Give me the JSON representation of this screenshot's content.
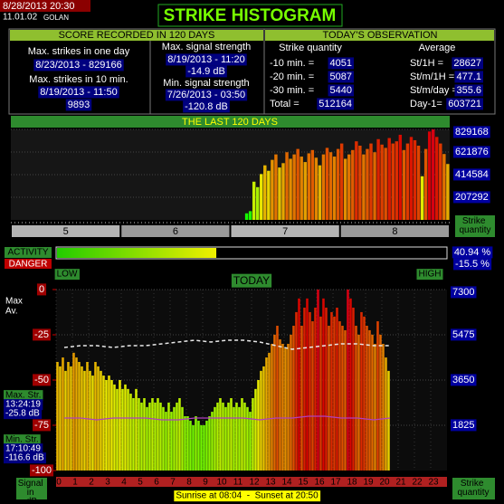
{
  "header": {
    "datetime": "8/28/2013 20:30",
    "version": "11.01.02",
    "station": "GOLAN",
    "title": "STRIKE HISTOGRAM"
  },
  "score": {
    "title": "SCORE RECORDED IN 120 DAYS",
    "max_day_label": "Max. strikes in one day",
    "max_day_value": "8/23/2013 - 829166",
    "max_10min_label": "Max. strikes in 10 min.",
    "max_10min_date": "8/19/2013 - 11:50",
    "max_10min_value": "9893",
    "max_signal_label": "Max. signal strength",
    "max_signal_date": "8/19/2013 - 11:20",
    "max_signal_value": "-14.9 dB",
    "min_signal_label": "Min. signal strength",
    "min_signal_date": "7/26/2013 - 03:50",
    "min_signal_value": "-120.8 dB"
  },
  "observation": {
    "title": "TODAY'S OBSERVATION",
    "quantity_header": "Strike quantity",
    "average_header": "Average",
    "rows": [
      [
        "-10 min. =",
        "4051",
        "St/1H =",
        "28627"
      ],
      [
        "-20 min. =",
        "5087",
        "St/m/1H =",
        "477.1"
      ],
      [
        "-30 min. =",
        "5440",
        "St/m/day =",
        "355.6"
      ],
      [
        "Total =",
        "512164",
        "Day-1=",
        "603721"
      ]
    ]
  },
  "activity": {
    "label": "ACTIVITY",
    "value": 40.94,
    "value_label": "40.94 %",
    "lim": [
      0,
      100
    ],
    "danger_label": "DANGER",
    "danger_value_label": "-15.5 %",
    "low": "LOW",
    "high": "HIGH"
  },
  "chart_data": [
    {
      "type": "bar",
      "title": "THE LAST 120 DAYS",
      "y_label": "Strike quantity",
      "groups": [
        "5",
        "6",
        "7",
        "8"
      ],
      "ylim": [
        0,
        829168
      ],
      "yticks": [
        207292,
        414584,
        621876,
        829168
      ],
      "values": [
        null,
        null,
        null,
        null,
        null,
        null,
        null,
        null,
        null,
        null,
        null,
        null,
        null,
        null,
        null,
        null,
        null,
        null,
        null,
        null,
        null,
        null,
        null,
        null,
        null,
        null,
        null,
        null,
        null,
        null,
        null,
        null,
        null,
        null,
        null,
        null,
        null,
        null,
        null,
        null,
        null,
        null,
        null,
        null,
        null,
        null,
        null,
        null,
        null,
        null,
        null,
        null,
        null,
        null,
        null,
        null,
        null,
        null,
        null,
        null,
        null,
        null,
        null,
        null,
        60000,
        80000,
        350000,
        300000,
        420000,
        500000,
        450000,
        550000,
        600000,
        480000,
        520000,
        620000,
        560000,
        600000,
        650000,
        580000,
        530000,
        610000,
        640000,
        570000,
        500000,
        600000,
        660000,
        620000,
        580000,
        650000,
        700000,
        560000,
        600000,
        640000,
        720000,
        680000,
        600000,
        650000,
        700000,
        620000,
        740000,
        690000,
        660000,
        750000,
        700000,
        720000,
        780000,
        640000,
        700000,
        760000,
        730000,
        680000,
        400000,
        650000,
        810000,
        829166,
        760000,
        700000,
        603721,
        512164
      ]
    },
    {
      "type": "bar",
      "title": "TODAY",
      "y_label": "Strike quantity",
      "y2_label": "Signal in dB",
      "ylim": [
        0,
        7300
      ],
      "yticks": [
        1825,
        3650,
        5475,
        7300
      ],
      "y2lim": [
        -100,
        0
      ],
      "y2ticks": [
        -100,
        -75,
        -50,
        -25,
        0
      ],
      "xlim": [
        0,
        24
      ],
      "xticks": [
        0,
        1,
        2,
        3,
        4,
        5,
        6,
        7,
        8,
        9,
        10,
        11,
        12,
        13,
        14,
        15,
        16,
        17,
        18,
        19,
        20,
        21,
        22,
        23
      ],
      "values": [
        4380,
        4200,
        4560,
        4020,
        4380,
        4200,
        4750,
        4560,
        4380,
        4200,
        4020,
        4380,
        4020,
        3830,
        4380,
        4200,
        4020,
        3830,
        3650,
        3830,
        3650,
        3470,
        3290,
        3650,
        3290,
        3470,
        3290,
        3100,
        2920,
        3290,
        2920,
        2740,
        2920,
        2560,
        2740,
        2920,
        2740,
        2920,
        2740,
        2560,
        2370,
        2740,
        2370,
        2560,
        2740,
        2920,
        2560,
        2190,
        2190,
        2010,
        1830,
        2190,
        2010,
        1830,
        1830,
        2010,
        2190,
        2370,
        2560,
        2740,
        2920,
        2740,
        2560,
        2740,
        2920,
        2560,
        2740,
        2560,
        2920,
        2740,
        2560,
        2370,
        2920,
        3290,
        3650,
        4020,
        4200,
        4560,
        4750,
        5110,
        5480,
        5840,
        5290,
        5110,
        4930,
        5110,
        5480,
        5840,
        6390,
        6940,
        5840,
        6570,
        6940,
        6390,
        6020,
        6570,
        7300,
        6210,
        6940,
        6570,
        5840,
        6390,
        6210,
        6570,
        6020,
        5840,
        5660,
        7300,
        6940,
        6570,
        5840,
        5480,
        6390,
        6210,
        5840,
        5660,
        5480,
        5110,
        6020,
        5480,
        5110,
        4560,
        4020,
        null,
        null,
        null,
        null,
        null,
        null,
        null,
        null,
        null,
        null,
        null,
        null,
        null,
        null,
        null,
        null,
        null,
        null,
        null,
        null,
        null
      ],
      "series": [
        {
          "name": "Max",
          "color": "#e8e8e8",
          "axis": "y2",
          "x": [
            0.5,
            1.5,
            2.5,
            3.5,
            4.5,
            5.5,
            6.5,
            7.5,
            8.5,
            9.5,
            10.5,
            11.5,
            12.5,
            13.5,
            14.5,
            15.5,
            16.5,
            17.5,
            18.5,
            19.5,
            20.5
          ],
          "values": [
            -32,
            -31,
            -31,
            -32,
            -31,
            -31,
            -30,
            -29,
            -28,
            -29,
            -28,
            -28,
            -29,
            -31,
            -33,
            -32,
            -31,
            -30,
            -30,
            -31,
            -31
          ]
        },
        {
          "name": "Av.",
          "color": "#b040c0",
          "axis": "y2",
          "x": [
            0.5,
            1.5,
            2.5,
            3.5,
            4.5,
            5.5,
            6.5,
            7.5,
            8.5,
            9.5,
            10.5,
            11.5,
            12.5,
            13.5,
            14.5,
            15.5,
            16.5,
            17.5,
            18.5,
            19.5,
            20.5
          ],
          "values": [
            -71,
            -71,
            -72,
            -71,
            -71,
            -71,
            -72,
            -72,
            -71,
            -71,
            -71,
            -71,
            -72,
            -71,
            -71,
            -70,
            -70,
            -71,
            -71,
            -72,
            -71
          ]
        }
      ],
      "max_str": {
        "label": "Max. Str.",
        "time": "13:24:19",
        "value": "-25.8 dB"
      },
      "min_str": {
        "label": "Min. Str.",
        "time": "17:10:49",
        "value": "-116.6 dB"
      },
      "sun": "Sunrise at 08:04  -  Sunset at 20:50"
    }
  ]
}
